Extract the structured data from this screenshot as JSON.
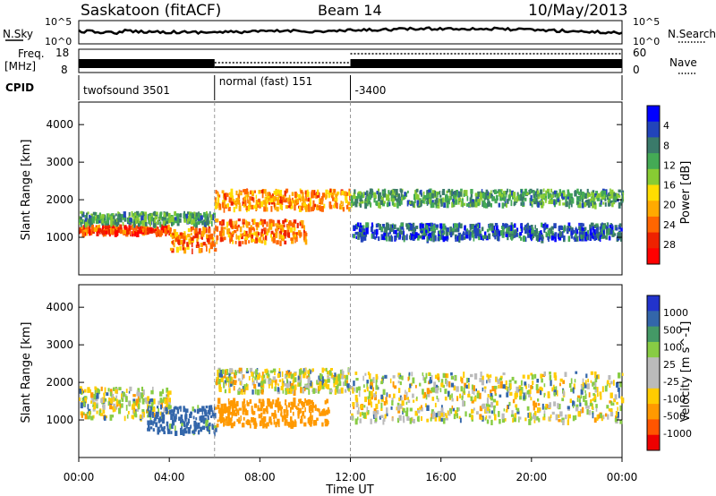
{
  "header": {
    "station": "Saskatoon (fitACF)",
    "beam": "Beam 14",
    "date": "10/May/2013"
  },
  "noise_panel": {
    "left_label": "N.Sky",
    "right_label": "N.Search",
    "left_ticks": [
      "10^5",
      "10^0"
    ],
    "right_ticks": [
      "10^5",
      "10^0"
    ]
  },
  "freq_panel": {
    "left_label_1": "Freq.",
    "left_label_2": "[MHz]",
    "right_label": "Nave",
    "left_ticks": [
      "18",
      "8"
    ],
    "right_ticks": [
      "60",
      "0"
    ]
  },
  "cpid": {
    "label": "CPID",
    "segments": [
      {
        "name": "twofsound 3501",
        "start_hour": 0,
        "end_hour": 6
      },
      {
        "name": "normal (fast) 151",
        "start_hour": 6,
        "end_hour": 12
      },
      {
        "name": "-3400",
        "start_hour": 12,
        "end_hour": 24
      }
    ]
  },
  "time_axis": {
    "label": "Time UT",
    "ticks": [
      "00:00",
      "04:00",
      "08:00",
      "12:00",
      "16:00",
      "20:00",
      "00:00"
    ]
  },
  "chart_data": [
    {
      "type": "heatmap",
      "name": "power",
      "ylabel": "Slant Range [km]",
      "xlim_hours": [
        0,
        24
      ],
      "ylim_km": [
        0,
        4600
      ],
      "yticks": [
        "1000",
        "2000",
        "3000",
        "4000"
      ],
      "colorbar": {
        "label": "Power [dB]",
        "tick_labels": [
          "4",
          "8",
          "12",
          "16",
          "20",
          "24",
          "28"
        ],
        "colors": [
          "#0000ff",
          "#2244bb",
          "#3a7a6a",
          "#44aa55",
          "#88cc33",
          "#ffdd00",
          "#ffaa00",
          "#ff6600",
          "#ee2200",
          "#ff0000"
        ]
      },
      "features": [
        {
          "hours": [
            0,
            4
          ],
          "range_km": [
            1150,
            1350
          ],
          "dB": 24
        },
        {
          "hours": [
            0,
            6
          ],
          "range_km": [
            1400,
            1700
          ],
          "dB": 10
        },
        {
          "hours": [
            4,
            6
          ],
          "range_km": [
            700,
            1300
          ],
          "dB": 22
        },
        {
          "hours": [
            6,
            12
          ],
          "range_km": [
            1800,
            2300
          ],
          "dB": 20
        },
        {
          "hours": [
            6,
            10
          ],
          "range_km": [
            900,
            1500
          ],
          "dB": 22
        },
        {
          "hours": [
            12,
            24
          ],
          "range_km": [
            1900,
            2300
          ],
          "dB": 10
        },
        {
          "hours": [
            12,
            24
          ],
          "range_km": [
            1000,
            1400
          ],
          "dB": 6
        }
      ]
    },
    {
      "type": "heatmap",
      "name": "velocity",
      "ylabel": "Slant Range [km]",
      "xlim_hours": [
        0,
        24
      ],
      "ylim_km": [
        0,
        4600
      ],
      "yticks": [
        "1000",
        "2000",
        "3000",
        "4000"
      ],
      "colorbar": {
        "label": "Velocity [m s^-1]",
        "tick_labels": [
          "1000",
          "500",
          "100",
          "25",
          "-25",
          "-100",
          "-500",
          "-1000"
        ],
        "colors": [
          "#2233cc",
          "#3366aa",
          "#449966",
          "#88cc44",
          "#bbbbbb",
          "#bbbbbb",
          "#ffcc00",
          "#ff9900",
          "#ff5500",
          "#ee0000"
        ]
      },
      "features": [
        {
          "hours": [
            0,
            4
          ],
          "range_km": [
            1100,
            1900
          ],
          "m_s": 0
        },
        {
          "hours": [
            3,
            6
          ],
          "range_km": [
            700,
            1400
          ],
          "m_s": 200
        },
        {
          "hours": [
            6,
            11
          ],
          "range_km": [
            900,
            1600
          ],
          "m_s": -300
        },
        {
          "hours": [
            6,
            12
          ],
          "range_km": [
            1800,
            2400
          ],
          "m_s": 0
        },
        {
          "hours": [
            12,
            24
          ],
          "range_km": [
            1000,
            2300
          ],
          "m_s": 0
        }
      ]
    }
  ]
}
